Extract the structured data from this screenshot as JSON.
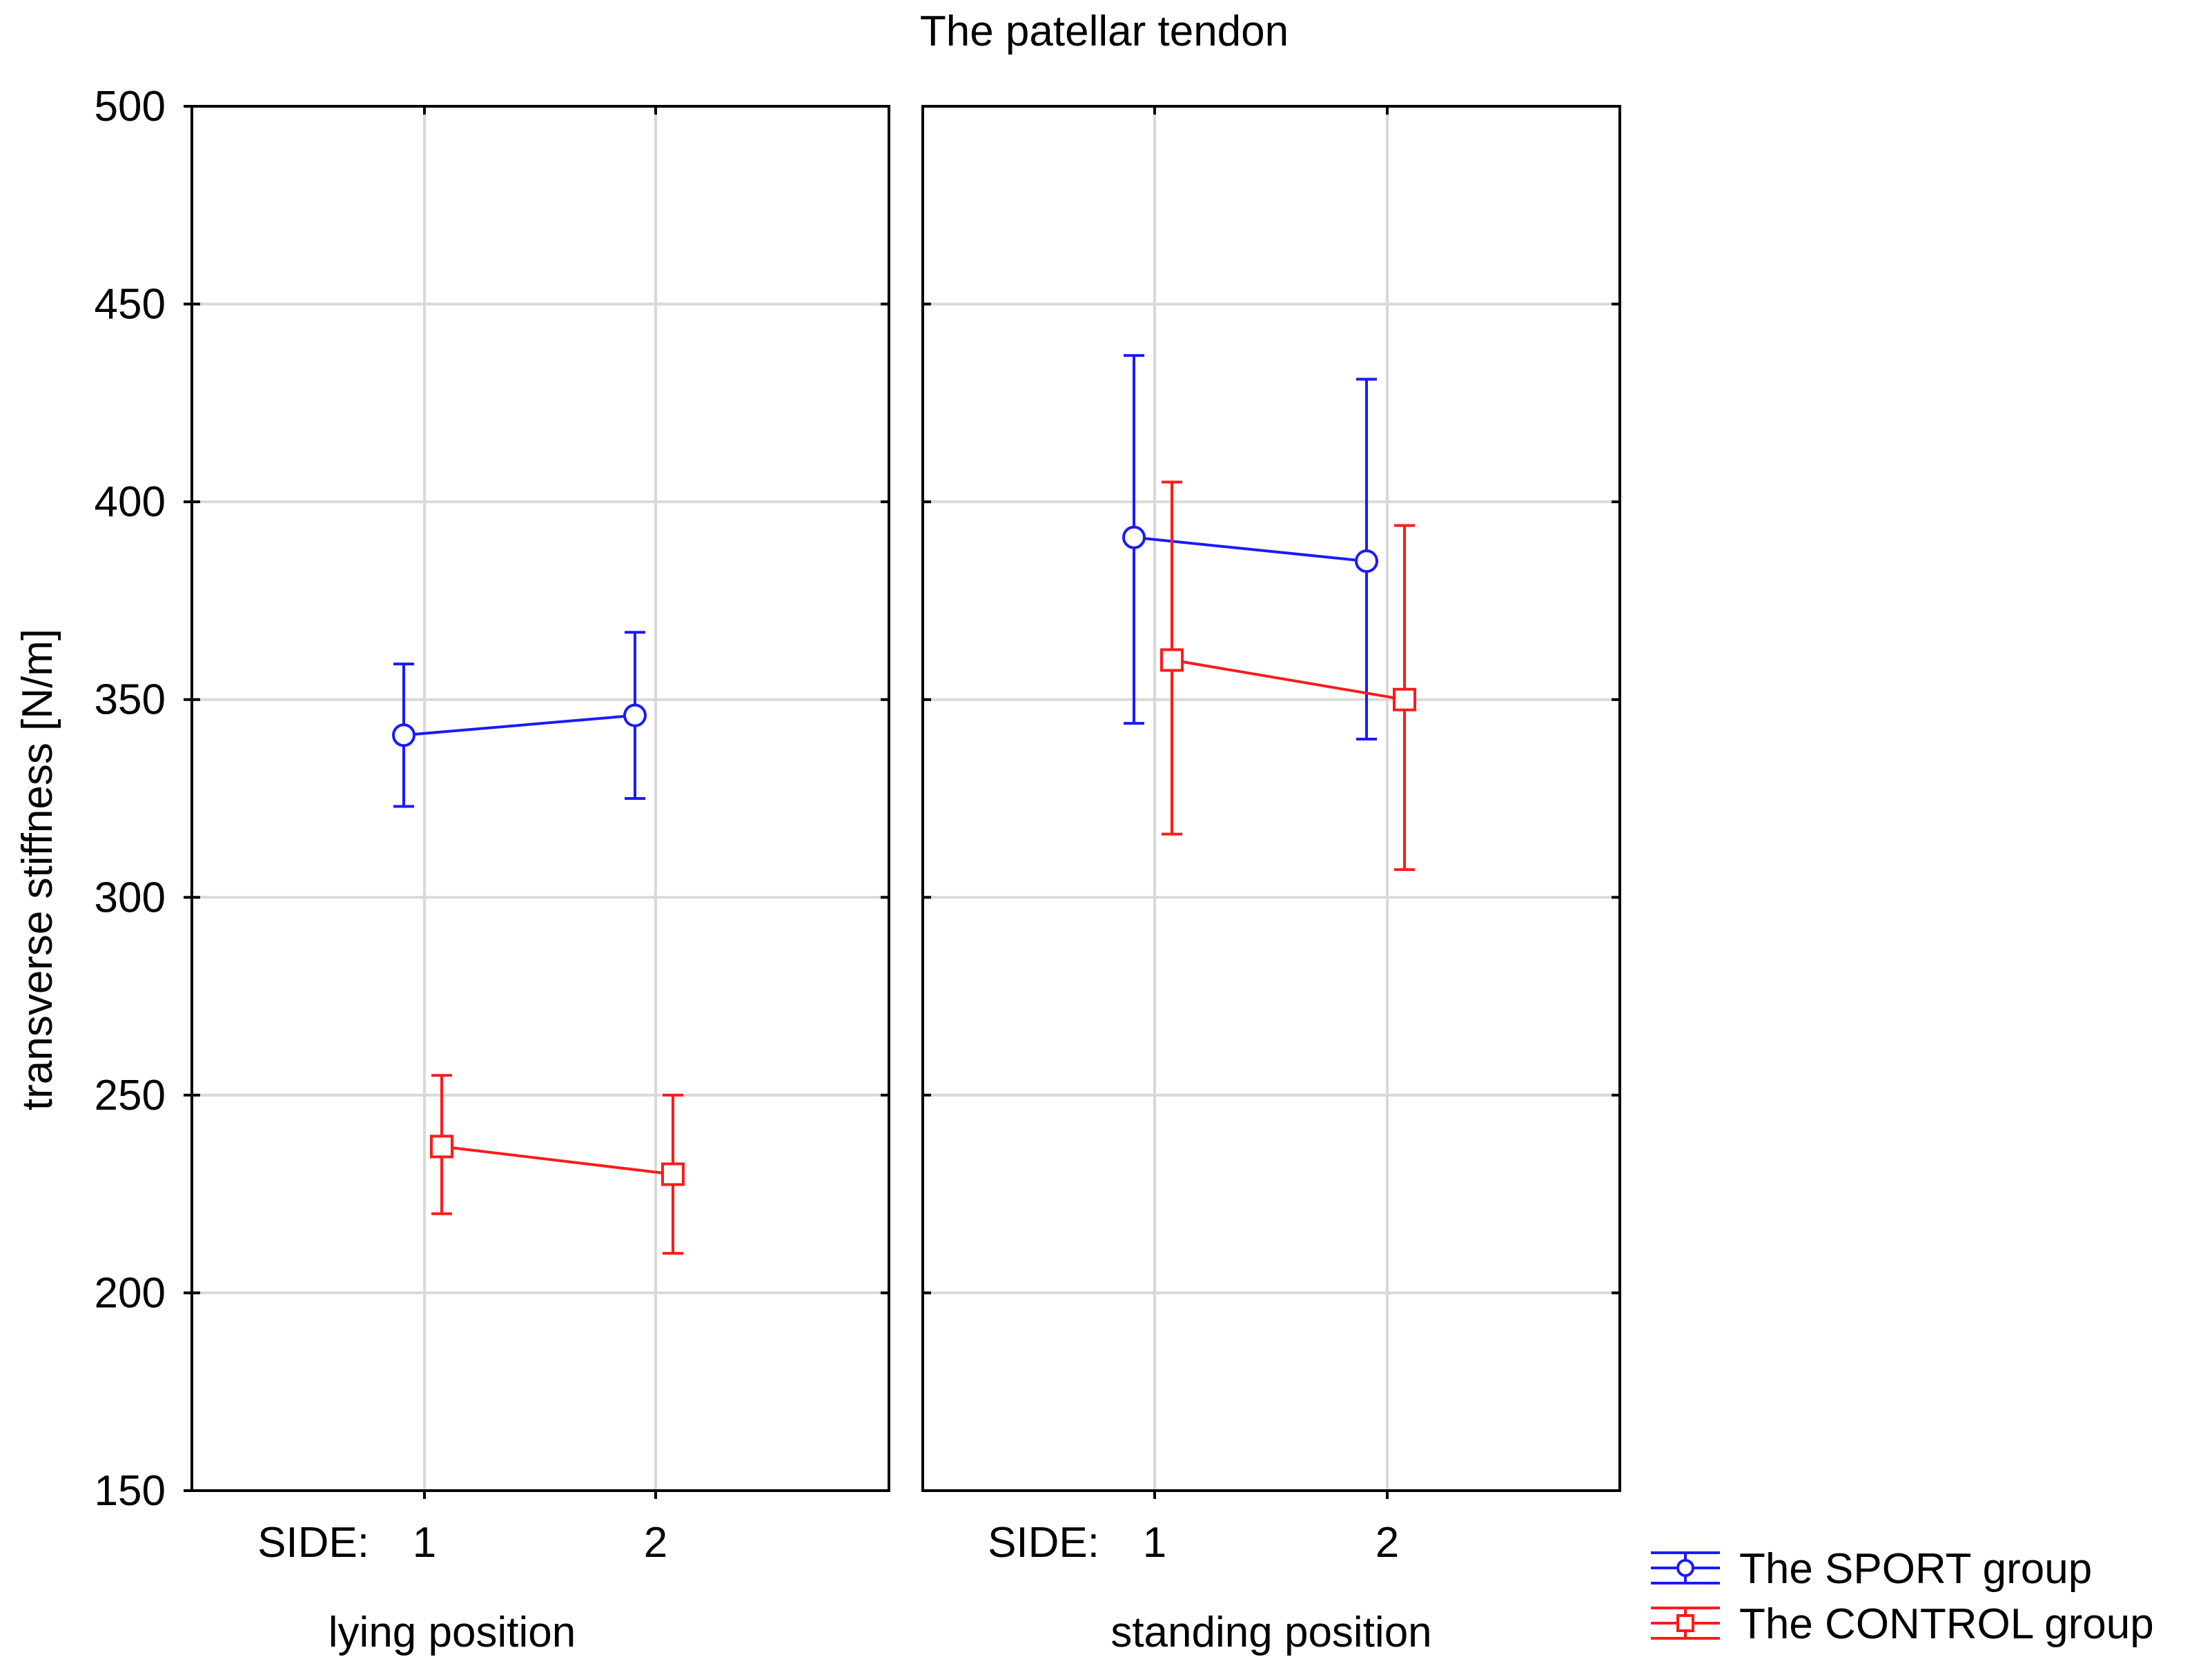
{
  "chart_data": {
    "type": "line",
    "title": "The patellar tendon",
    "ylabel": "transverse stiffness [N/m]",
    "ylim": [
      150,
      500
    ],
    "yticks": [
      150,
      200,
      250,
      300,
      350,
      400,
      450,
      500
    ],
    "x_prefix": "SIDE:",
    "categories": [
      "1",
      "2"
    ],
    "panels": [
      {
        "label": "lying position",
        "series": [
          {
            "name": "The SPORT group",
            "values": [
              341,
              346
            ],
            "lower": [
              323,
              325
            ],
            "upper": [
              359,
              367
            ]
          },
          {
            "name": "The CONTROL group",
            "values": [
              237,
              230
            ],
            "lower": [
              220,
              210
            ],
            "upper": [
              255,
              250
            ]
          }
        ]
      },
      {
        "label": "standing position",
        "series": [
          {
            "name": "The SPORT group",
            "values": [
              391,
              385
            ],
            "lower": [
              344,
              340
            ],
            "upper": [
              437,
              431
            ]
          },
          {
            "name": "The CONTROL group",
            "values": [
              360,
              350
            ],
            "lower": [
              316,
              307
            ],
            "upper": [
              405,
              394
            ]
          }
        ]
      }
    ],
    "legend": [
      {
        "name": "The SPORT group",
        "color": "#1a1aff",
        "marker": "circle"
      },
      {
        "name": "The CONTROL group",
        "color": "#ff1a1a",
        "marker": "square"
      }
    ],
    "grid": true,
    "legend_position": "bottom-right"
  }
}
